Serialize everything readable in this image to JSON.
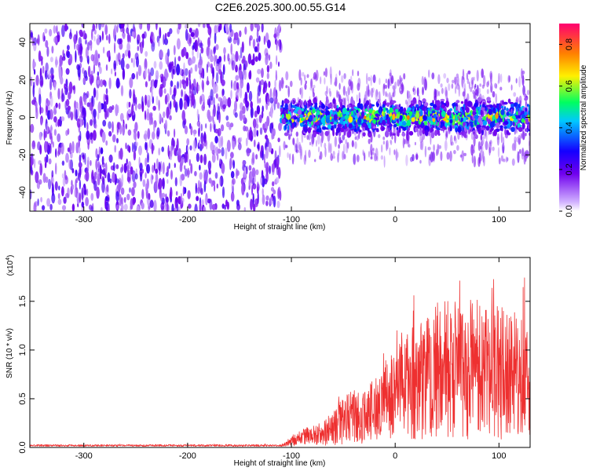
{
  "figure": {
    "title": "C2E6.2025.300.00.55.G14"
  },
  "chart_data": [
    {
      "type": "heatmap",
      "xlabel": "Height of straight line (km)",
      "ylabel": "Frequency (Hz)",
      "xlim": [
        -352,
        130
      ],
      "ylim": [
        -50,
        50
      ],
      "xticks": [
        -300,
        -200,
        -100,
        0,
        100
      ],
      "yticks": [
        -40,
        -20,
        0,
        20,
        40
      ],
      "colorbar": {
        "label": "Normalized spectral amplitude",
        "range": [
          0.0,
          0.9
        ],
        "ticks": [
          0.0,
          0.2,
          0.4,
          0.6,
          0.8
        ],
        "colormap": [
          "#ffffff",
          "#d0b0ff",
          "#7000ee",
          "#1400ff",
          "#00c8ff",
          "#00ff60",
          "#fff000",
          "#ff8000",
          "#ff0070"
        ]
      },
      "regions": [
        {
          "x_range": [
            -352,
            -110
          ],
          "y_range": [
            -50,
            50
          ],
          "amplitude": [
            0.05,
            0.25
          ],
          "description": "broadband noise"
        },
        {
          "x_range": [
            -110,
            130
          ],
          "center_freq": 0,
          "half_width": 10,
          "amplitude": [
            0.2,
            0.7
          ]
        }
      ]
    },
    {
      "type": "line",
      "xlabel": "Height of straight line (km)",
      "ylabel": "SNR (10 * v/v)",
      "y_multiplier": "(x10",
      "y_multiplier_exp": "4",
      "xlim": [
        -352,
        130
      ],
      "ylim": [
        0,
        1.95
      ],
      "xticks": [
        -300,
        -200,
        -100,
        0,
        100
      ],
      "yticks": [
        0.0,
        0.5,
        1.0,
        1.5
      ],
      "color": "#ee3030",
      "series": [
        {
          "x": [
            -352,
            -300,
            -250,
            -200,
            -150,
            -110,
            -100,
            -90,
            -80,
            -70,
            -60,
            -50,
            -40,
            -30,
            -20,
            -10,
            0,
            10,
            20,
            30,
            40,
            50,
            60,
            70,
            80,
            90,
            100,
            110,
            120,
            130
          ],
          "y_center": [
            0.02,
            0.02,
            0.02,
            0.02,
            0.02,
            0.02,
            0.06,
            0.1,
            0.14,
            0.13,
            0.2,
            0.26,
            0.3,
            0.3,
            0.4,
            0.48,
            0.55,
            0.62,
            0.66,
            0.72,
            0.8,
            0.82,
            0.78,
            0.8,
            0.82,
            0.8,
            0.78,
            0.76,
            0.74,
            0.72
          ],
          "y_spread": [
            0.01,
            0.01,
            0.01,
            0.01,
            0.01,
            0.01,
            0.05,
            0.08,
            0.1,
            0.12,
            0.18,
            0.25,
            0.32,
            0.28,
            0.34,
            0.4,
            0.46,
            0.52,
            0.62,
            0.65,
            0.7,
            0.72,
            0.7,
            0.72,
            0.7,
            0.68,
            0.7,
            0.66,
            0.64,
            0.62
          ]
        }
      ]
    }
  ]
}
